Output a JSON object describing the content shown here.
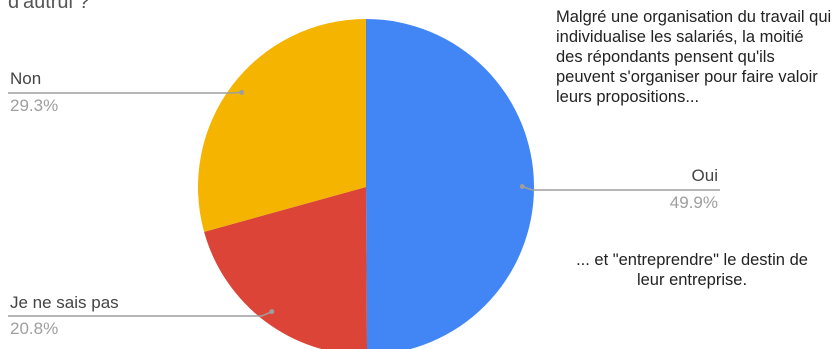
{
  "question_fragment": "d'autrui ?",
  "annotations": {
    "top": "Malgré une organisation du travail qui individualise les salariés, la moitié des répondants pensent qu'ils peuvent s'organiser pour faire valoir leurs propositions...",
    "bottom": "... et \"entreprendre\" le destin de leur entreprise."
  },
  "chart_data": {
    "type": "pie",
    "title": "",
    "slices": [
      {
        "label": "Oui",
        "value": 49.9,
        "value_label": "49.9%",
        "color": "#4285f4"
      },
      {
        "label": "Je ne sais pas",
        "value": 20.8,
        "value_label": "20.8%",
        "color": "#db4437"
      },
      {
        "label": "Non",
        "value": 29.3,
        "value_label": "29.3%",
        "color": "#f4b400"
      }
    ],
    "start_angle": "12 o'clock",
    "direction": "clockwise",
    "legend": "none (labels outside slices with leader lines)"
  }
}
